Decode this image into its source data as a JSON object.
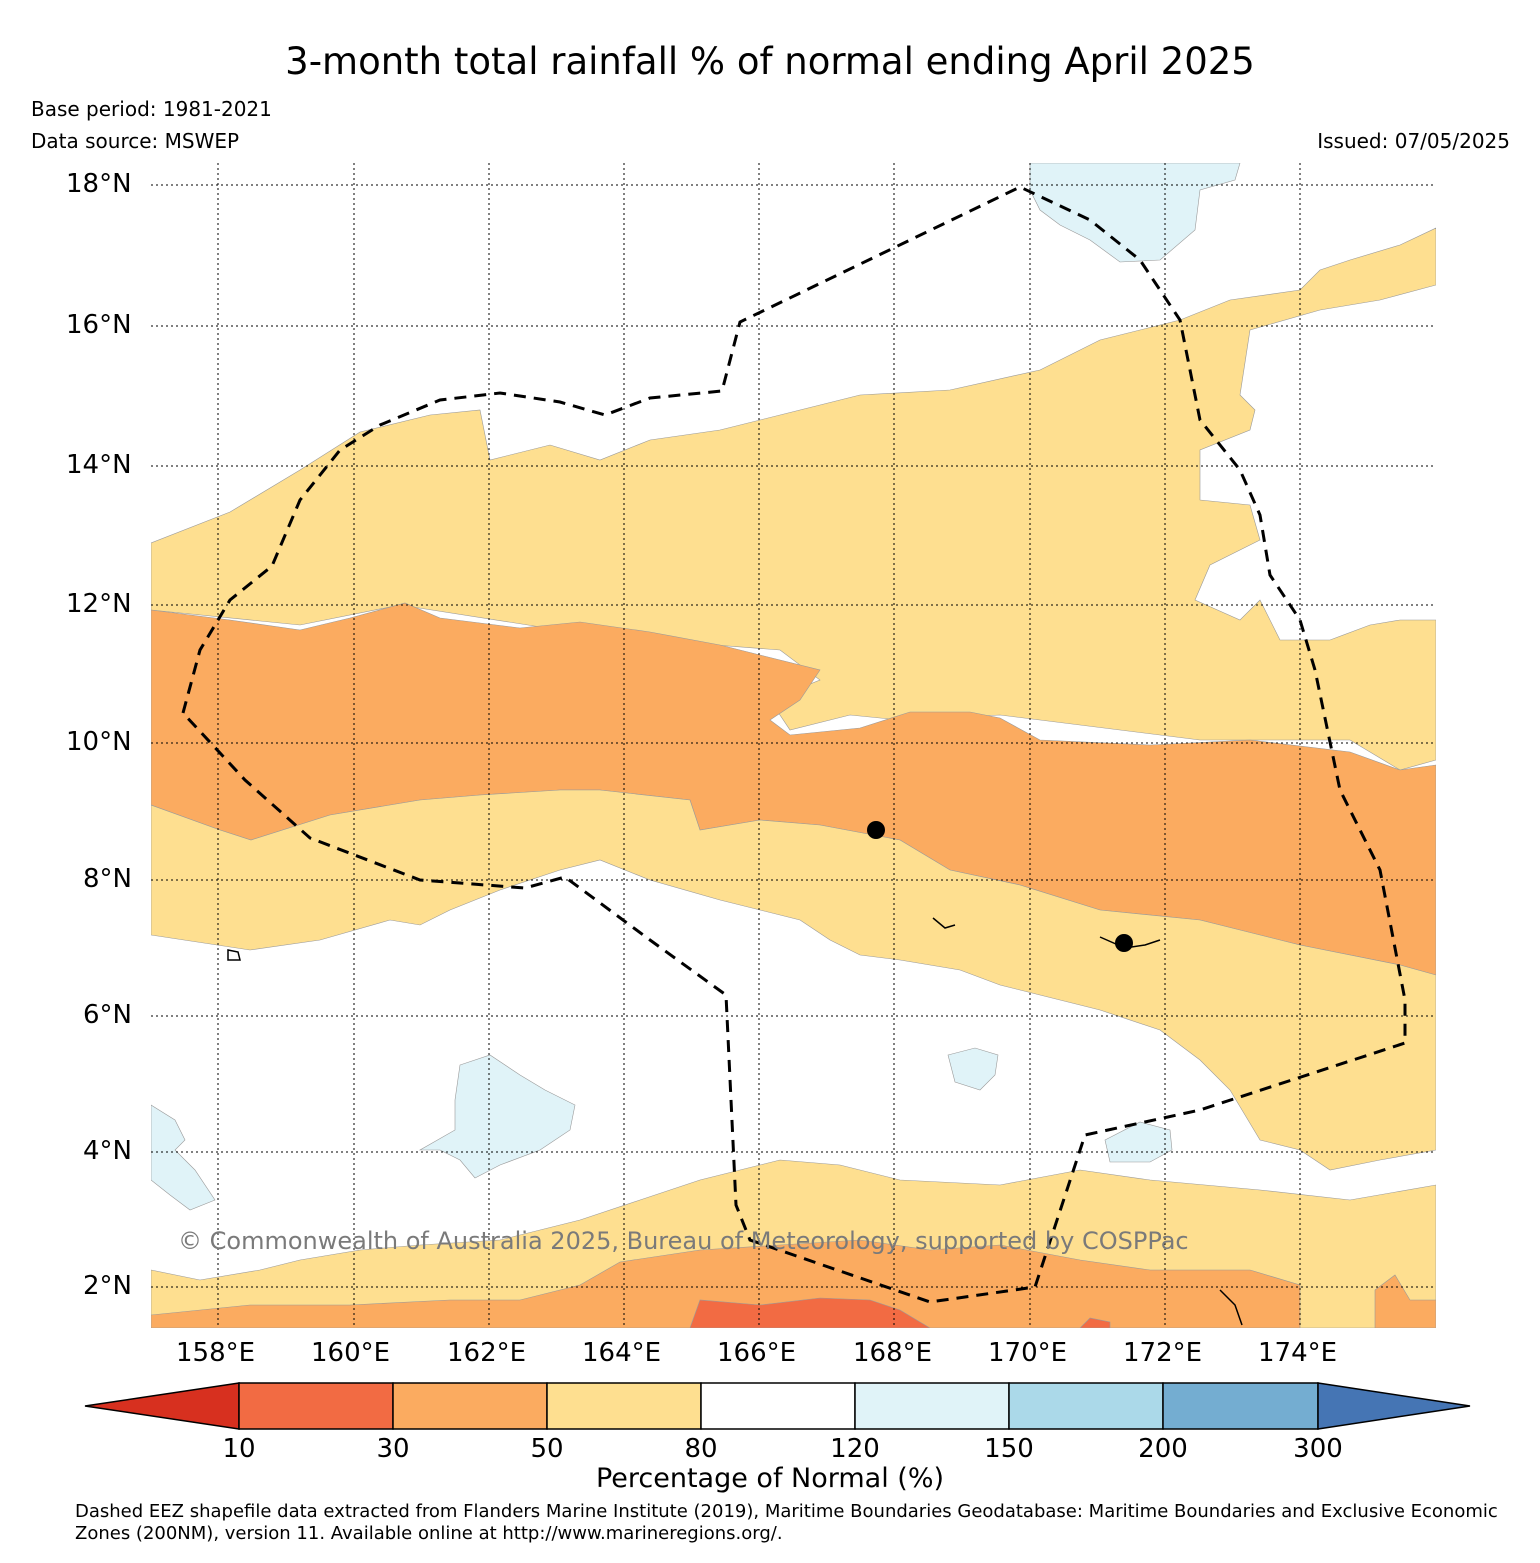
{
  "header": {
    "title": "3-month total rainfall % of normal ending April 2025",
    "base_period": "Base period: 1981-2021",
    "data_source": "Data source: MSWEP",
    "issued": "Issued: 07/05/2025"
  },
  "axes": {
    "lat_labels": [
      "18°N",
      "16°N",
      "14°N",
      "12°N",
      "10°N",
      "8°N",
      "6°N",
      "4°N",
      "2°N"
    ],
    "lat_values": [
      18,
      16,
      14,
      12,
      10,
      8,
      6,
      4,
      2
    ],
    "lon_labels": [
      "158°E",
      "160°E",
      "162°E",
      "164°E",
      "166°E",
      "168°E",
      "170°E",
      "172°E",
      "174°E"
    ],
    "lon_values": [
      158,
      160,
      162,
      164,
      166,
      168,
      170,
      172,
      174
    ],
    "lat_range": [
      1.4,
      18.3
    ],
    "lon_range": [
      157,
      176
    ],
    "gridlines": "dotted"
  },
  "legend": {
    "title": "Percentage of Normal (%)",
    "ticks": [
      "10",
      "30",
      "50",
      "80",
      "120",
      "150",
      "200",
      "300"
    ],
    "bins": [
      {
        "range": "<10",
        "color": "#d7301f"
      },
      {
        "range": "10-30",
        "color": "#f26b43"
      },
      {
        "range": "30-50",
        "color": "#fbab60"
      },
      {
        "range": "50-80",
        "color": "#fedf90"
      },
      {
        "range": "80-120",
        "color": "#ffffff"
      },
      {
        "range": "120-150",
        "color": "#e0f3f8"
      },
      {
        "range": "150-200",
        "color": "#abd9e9"
      },
      {
        "range": "200-300",
        "color": "#74add1"
      },
      {
        "range": ">300",
        "color": "#4575b4"
      }
    ],
    "extend": "both"
  },
  "copyright": "© Commonwealth of Australia 2025, Bureau of Meteorology, supported by COSPPac",
  "credit": "Dashed EEZ shapefile data extracted from Flanders Marine Institute (2019), Maritime Boundaries Geodatabase: Maritime Boundaries and Exclusive Economic Zones (200NM), version 11. Available online at http://www.marineregions.org/.",
  "map_features": {
    "eez_boundary": "dashed",
    "markers": [
      {
        "name": "marker-1",
        "lon": 167.7,
        "lat": 8.7
      },
      {
        "name": "marker-2",
        "lon": 171.4,
        "lat": 7.1
      }
    ]
  }
}
